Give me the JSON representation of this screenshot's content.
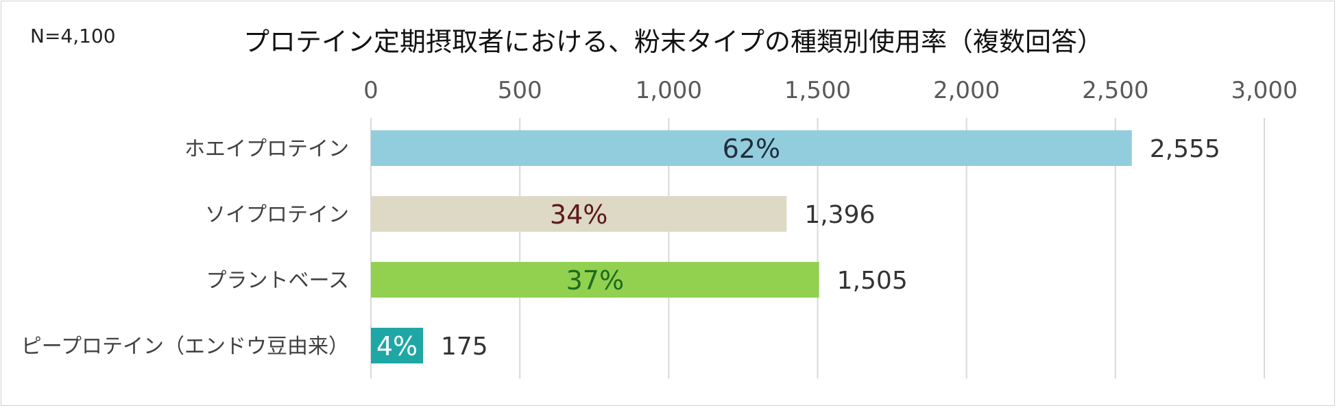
{
  "n_label": "N=4,100",
  "chart_data": {
    "type": "bar",
    "orientation": "horizontal",
    "title": "プロテイン定期摂取者における、粉末タイプの種類別使用率（複数回答）",
    "categories": [
      "ホエイプロテイン",
      "ソイプロテイン",
      "プラントベース",
      "ピープロテイン（エンドウ豆由来）"
    ],
    "values": [
      2555,
      1396,
      1505,
      175
    ],
    "value_labels": [
      "2,555",
      "1,396",
      "1,505",
      "175"
    ],
    "percent_labels": [
      "62%",
      "34%",
      "37%",
      "4%"
    ],
    "bar_colors": [
      "#92cddd",
      "#ddd9c4",
      "#92d050",
      "#1fa7a5"
    ],
    "percent_label_colors": [
      "#1f2d3d",
      "#5c1a1a",
      "#1e6b1e",
      "#ffffff"
    ],
    "xlim": [
      0,
      3000
    ],
    "x_ticks": [
      0,
      500,
      1000,
      1500,
      2000,
      2500,
      3000
    ],
    "x_tick_labels": [
      "0",
      "500",
      "1,000",
      "1,500",
      "2,000",
      "2,500",
      "3,000"
    ],
    "axis_position": "top",
    "grid": true,
    "legend": "none"
  }
}
